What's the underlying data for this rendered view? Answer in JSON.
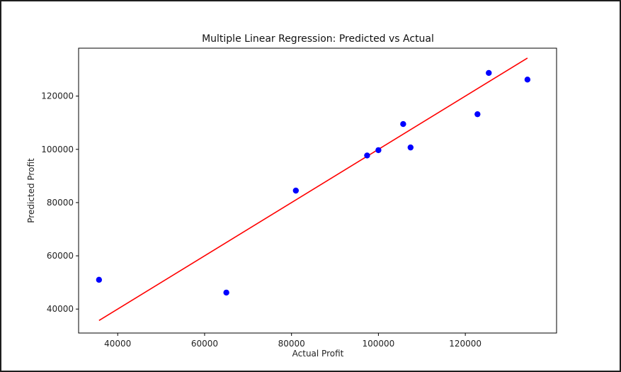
{
  "chart_data": {
    "type": "scatter",
    "title": "Multiple Linear Regression: Predicted vs Actual",
    "xlabel": "Actual Profit",
    "ylabel": "Predicted Profit",
    "xlim": [
      31000,
      141000
    ],
    "ylim": [
      31000,
      138000
    ],
    "xticks": [
      40000,
      60000,
      80000,
      100000,
      120000
    ],
    "yticks": [
      40000,
      60000,
      80000,
      100000,
      120000
    ],
    "grid": false,
    "series": [
      {
        "type": "scatter",
        "color": "#0000ff",
        "points": [
          {
            "x": 35700,
            "y": 51000
          },
          {
            "x": 65000,
            "y": 46200
          },
          {
            "x": 81000,
            "y": 84500
          },
          {
            "x": 97400,
            "y": 97700
          },
          {
            "x": 100000,
            "y": 99700
          },
          {
            "x": 105700,
            "y": 109500
          },
          {
            "x": 107400,
            "y": 100700
          },
          {
            "x": 122800,
            "y": 113200
          },
          {
            "x": 125400,
            "y": 128700
          },
          {
            "x": 134300,
            "y": 126200
          }
        ]
      },
      {
        "type": "line",
        "color": "#ff0000",
        "points": [
          {
            "x": 35700,
            "y": 35700
          },
          {
            "x": 134300,
            "y": 134300
          }
        ]
      }
    ]
  }
}
